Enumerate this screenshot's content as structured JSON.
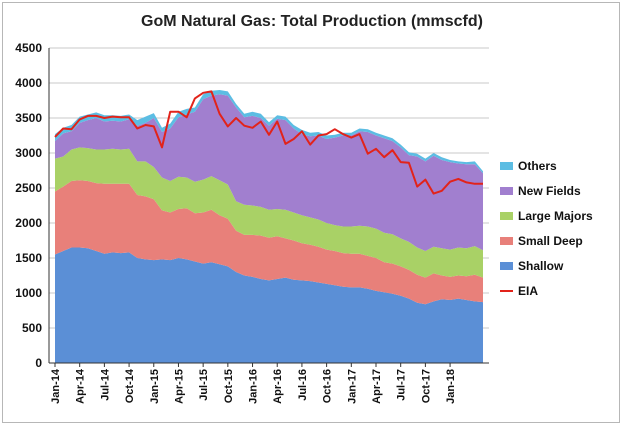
{
  "chart_data": {
    "type": "area",
    "title": "GoM Natural Gas: Total Production (mmscfd)",
    "xlabel": "",
    "ylabel": "",
    "ylim": [
      0,
      4500
    ],
    "ytick_step": 500,
    "yticks": [
      "0",
      "500",
      "1000",
      "1500",
      "2000",
      "2500",
      "3000",
      "3500",
      "4000",
      "4500"
    ],
    "stacked": true,
    "grid": "horizontal",
    "legend_position": "right",
    "x_start": "2014-01",
    "x_end": "2018-04",
    "x_tick_labels": [
      "Jan-14",
      "Apr-14",
      "Jul-14",
      "Oct-14",
      "Jan-15",
      "Apr-15",
      "Jul-15",
      "Oct-15",
      "Jan-16",
      "Apr-16",
      "Jul-16",
      "Oct-16",
      "Jan-17",
      "Apr-17",
      "Jul-17",
      "Oct-17",
      "Jan-18"
    ],
    "series": [
      {
        "name": "Shallow",
        "color": "#5b8fd6",
        "values": [
          1550,
          1600,
          1650,
          1650,
          1640,
          1600,
          1560,
          1580,
          1570,
          1580,
          1500,
          1480,
          1470,
          1480,
          1470,
          1500,
          1480,
          1450,
          1420,
          1440,
          1410,
          1380,
          1300,
          1250,
          1230,
          1200,
          1180,
          1200,
          1220,
          1190,
          1180,
          1170,
          1150,
          1130,
          1110,
          1090,
          1080,
          1080,
          1060,
          1030,
          1010,
          990,
          960,
          920,
          860,
          840,
          880,
          910,
          900,
          920,
          900,
          880,
          870
        ]
      },
      {
        "name": "Small Deep",
        "color": "#e8807a",
        "values": [
          900,
          920,
          950,
          960,
          960,
          970,
          1000,
          980,
          990,
          980,
          900,
          900,
          870,
          700,
          680,
          700,
          730,
          690,
          730,
          750,
          700,
          680,
          590,
          580,
          600,
          620,
          610,
          610,
          560,
          560,
          530,
          520,
          510,
          490,
          490,
          480,
          480,
          480,
          470,
          470,
          430,
          430,
          420,
          410,
          400,
          380,
          400,
          340,
          330,
          330,
          340,
          380,
          350
        ]
      },
      {
        "name": "Large Majors",
        "color": "#a9d166",
        "values": [
          470,
          430,
          450,
          470,
          470,
          480,
          490,
          500,
          490,
          500,
          480,
          500,
          460,
          470,
          450,
          460,
          440,
          450,
          470,
          480,
          500,
          490,
          420,
          430,
          420,
          410,
          400,
          390,
          410,
          400,
          400,
          390,
          390,
          380,
          370,
          380,
          390,
          400,
          420,
          420,
          420,
          420,
          400,
          400,
          390,
          380,
          380,
          390,
          390,
          400,
          400,
          410,
          390
        ]
      },
      {
        "name": "New Fields",
        "color": "#a17fcf",
        "values": [
          250,
          330,
          260,
          350,
          400,
          450,
          400,
          400,
          400,
          420,
          510,
          550,
          700,
          650,
          750,
          850,
          900,
          1000,
          1150,
          1150,
          1230,
          1270,
          1340,
          1250,
          1280,
          1270,
          1200,
          1290,
          1280,
          1200,
          1160,
          1160,
          1200,
          1200,
          1250,
          1300,
          1300,
          1350,
          1350,
          1330,
          1350,
          1330,
          1300,
          1240,
          1300,
          1280,
          1300,
          1260,
          1250,
          1200,
          1200,
          1170,
          1100
        ]
      },
      {
        "name": "Others",
        "color": "#5cbde3",
        "values": [
          100,
          80,
          90,
          90,
          80,
          80,
          90,
          80,
          80,
          70,
          80,
          90,
          70,
          60,
          70,
          80,
          80,
          60,
          70,
          70,
          60,
          60,
          50,
          50,
          60,
          60,
          50,
          50,
          50,
          50,
          60,
          50,
          50,
          50,
          40,
          40,
          40,
          40,
          40,
          40,
          40,
          40,
          40,
          40,
          40,
          40,
          40,
          40,
          30,
          30,
          30,
          40,
          30
        ]
      },
      {
        "name": "EIA",
        "color": "#e2231a",
        "type": "line",
        "values": [
          3230,
          3350,
          3340,
          3480,
          3530,
          3530,
          3500,
          3520,
          3510,
          3510,
          3350,
          3400,
          3380,
          3080,
          3590,
          3590,
          3510,
          3780,
          3860,
          3880,
          3560,
          3380,
          3500,
          3390,
          3360,
          3450,
          3260,
          3450,
          3130,
          3200,
          3310,
          3120,
          3250,
          3270,
          3340,
          3270,
          3220,
          3270,
          2990,
          3060,
          2940,
          3040,
          2870,
          2860,
          2520,
          2620,
          2420,
          2460,
          2590,
          2630,
          2580,
          2560,
          2560
        ]
      }
    ],
    "legend_order": [
      "Others",
      "New Fields",
      "Large Majors",
      "Small Deep",
      "Shallow",
      "EIA"
    ]
  }
}
